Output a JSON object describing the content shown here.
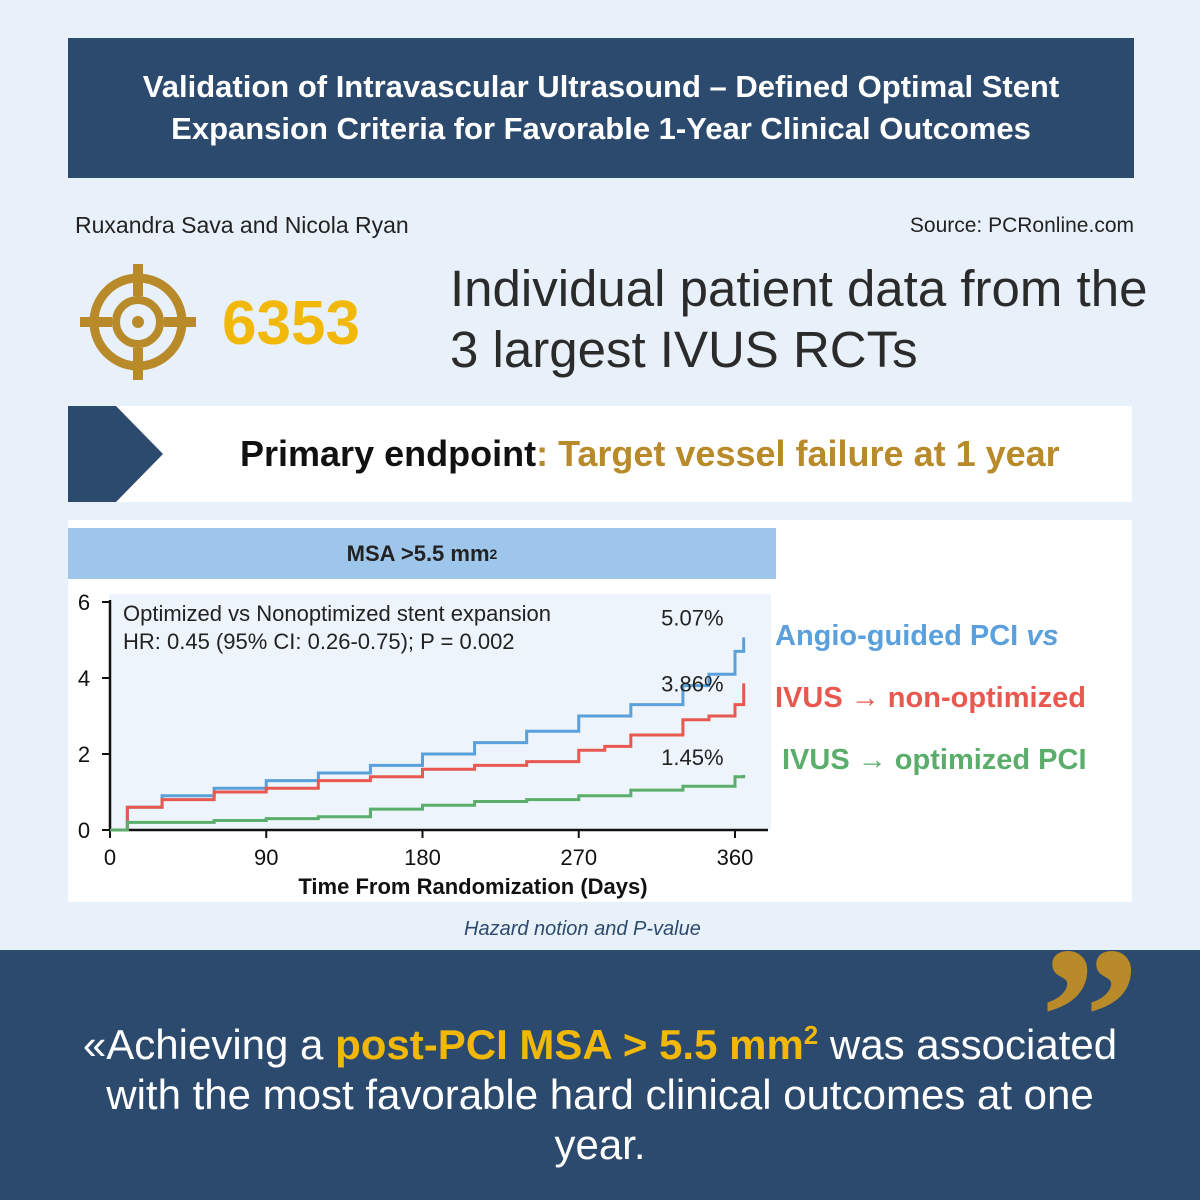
{
  "title": "Validation of Intravascular Ultrasound – Defined Optimal Stent Expansion Criteria for Favorable 1-Year Clinical Outcomes",
  "authors": "Ruxandra Sava and Nicola Ryan",
  "source": "Source: PCRonline.com",
  "stat": {
    "icon": "target-icon",
    "number": "6353",
    "description": "Individual patient data from the 3 largest IVUS RCTs"
  },
  "endpoint": {
    "label": "Primary endpoint",
    "separator": ": ",
    "value": "Target vessel failure at 1 year"
  },
  "chart_header": {
    "text": "MSA >5.5 mm",
    "superscript": "2"
  },
  "chart_data": {
    "type": "line",
    "annotation_line1": "Optimized vs Nonoptimized stent expansion",
    "annotation_line2": "HR: 0.45 (95% CI: 0.26-0.75); P = 0.002",
    "xlabel": "Time From Randomization (Days)",
    "ylabel": "",
    "xlim": [
      0,
      365
    ],
    "ylim": [
      0,
      6
    ],
    "x_ticks": [
      0,
      90,
      180,
      270,
      360
    ],
    "y_ticks": [
      0,
      2,
      4,
      6
    ],
    "series": [
      {
        "name": "Angio-guided PCI",
        "color": "#5aa0dc",
        "end_label": "5.07%",
        "x": [
          0,
          10,
          30,
          60,
          90,
          120,
          150,
          180,
          210,
          240,
          270,
          300,
          330,
          345,
          360,
          365
        ],
        "y": [
          0,
          0.6,
          0.9,
          1.1,
          1.3,
          1.5,
          1.7,
          2.0,
          2.3,
          2.6,
          3.0,
          3.3,
          3.8,
          4.1,
          4.7,
          5.07
        ]
      },
      {
        "name": "IVUS → non-optimized",
        "color": "#e8584f",
        "end_label": "3.86%",
        "x": [
          0,
          10,
          30,
          60,
          90,
          120,
          150,
          180,
          210,
          240,
          270,
          285,
          300,
          330,
          345,
          360,
          365
        ],
        "y": [
          0,
          0.6,
          0.8,
          1.0,
          1.1,
          1.3,
          1.4,
          1.6,
          1.7,
          1.8,
          2.1,
          2.2,
          2.5,
          2.9,
          3.0,
          3.3,
          3.86
        ]
      },
      {
        "name": "IVUS → optimized PCI",
        "color": "#5aad6a",
        "end_label": "1.45%",
        "x": [
          0,
          10,
          30,
          60,
          90,
          120,
          150,
          180,
          210,
          240,
          270,
          300,
          330,
          360,
          365
        ],
        "y": [
          0,
          0.2,
          0.2,
          0.25,
          0.3,
          0.35,
          0.55,
          0.65,
          0.75,
          0.8,
          0.9,
          1.05,
          1.15,
          1.4,
          1.45
        ]
      }
    ]
  },
  "legend": {
    "angio_text": "Angio-guided PCI ",
    "angio_vs": "vs",
    "nonopt_text": "IVUS → non-optimized",
    "opt_text": "IVUS → optimized PCI",
    "angio_color": "#5aa0dc",
    "nonopt_color": "#e8584f",
    "opt_color": "#5aad6a"
  },
  "caption": "Hazard notion and P-value",
  "quote": {
    "open": "«Achieving a ",
    "highlight": "post-PCI MSA > 5.5 mm",
    "highlight_sup": "2",
    "rest": " was associated with the most favorable hard clinical outcomes at one year."
  },
  "colors": {
    "navy": "#2c4a6d",
    "gold": "#b88a2a",
    "yellow": "#f2b807",
    "light_blue": "#9ec5ea"
  }
}
